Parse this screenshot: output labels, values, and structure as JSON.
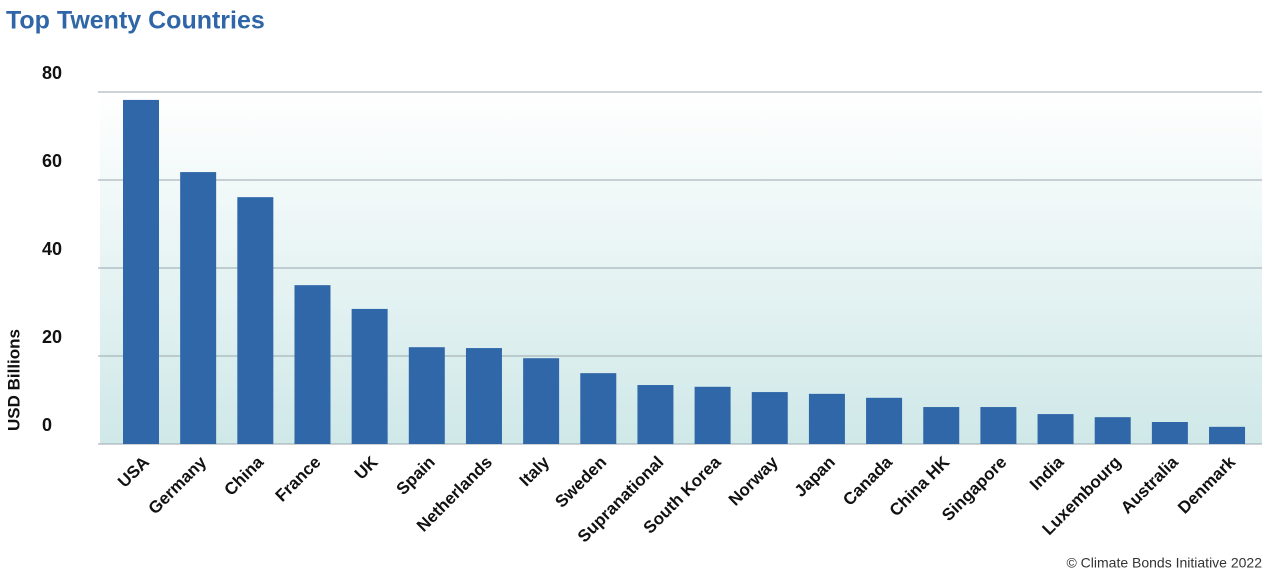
{
  "chart_data": {
    "type": "bar",
    "title": "Top Twenty Countries",
    "y_label": "USD Billions",
    "categories": [
      "USA",
      "Germany",
      "China",
      "France",
      "UK",
      "Spain",
      "Netherlands",
      "Italy",
      "Sweden",
      "Supranational",
      "South Korea",
      "Norway",
      "Japan",
      "Canada",
      "China HK",
      "Singapore",
      "India",
      "Luxembourg",
      "Australia",
      "Denmark"
    ],
    "values": [
      78.2,
      61.8,
      56.1,
      36.1,
      30.7,
      22.0,
      21.8,
      19.5,
      16.1,
      13.4,
      13.0,
      11.8,
      11.4,
      10.5,
      8.4,
      8.4,
      6.8,
      6.1,
      5.0,
      3.9
    ],
    "color": "#3067a8",
    "ylim": [
      0,
      80
    ],
    "yticks": [
      0,
      20,
      40,
      60,
      80
    ],
    "grid": true,
    "source": "© Climate Bonds Initiative 2022"
  }
}
